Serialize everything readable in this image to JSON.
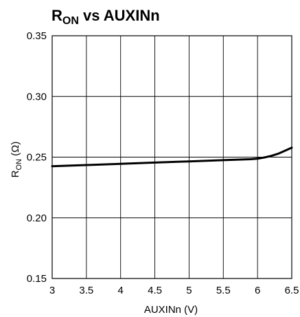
{
  "chart_data": {
    "type": "line",
    "title": {
      "main": "R",
      "sub": "ON",
      "rest": " vs AUXINn"
    },
    "xlabel": "AUXINn (V)",
    "ylabel": {
      "main": "R",
      "sub": "ON",
      "rest": " (Ω)"
    },
    "xlim": [
      3,
      6.5
    ],
    "ylim": [
      0.15,
      0.35
    ],
    "x_ticks": [
      3,
      3.5,
      4,
      4.5,
      5,
      5.5,
      6,
      6.5
    ],
    "x_tick_labels": [
      "3",
      "3.5",
      "4",
      "4.5",
      "5",
      "5.5",
      "6",
      "6.5"
    ],
    "y_ticks": [
      0.15,
      0.2,
      0.25,
      0.3,
      0.35
    ],
    "y_tick_labels": [
      "0.15",
      "0.20",
      "0.25",
      "0.30",
      "0.35"
    ],
    "grid": true,
    "line_color": "#000000",
    "series": [
      {
        "x": [
          3.0,
          3.5,
          4.0,
          4.5,
          5.0,
          5.5,
          5.9,
          6.0,
          6.1,
          6.2,
          6.3,
          6.4,
          6.5
        ],
        "y": [
          0.2425,
          0.2435,
          0.2445,
          0.2455,
          0.2465,
          0.2475,
          0.2483,
          0.2487,
          0.2497,
          0.251,
          0.2528,
          0.2552,
          0.2578
        ]
      }
    ]
  }
}
